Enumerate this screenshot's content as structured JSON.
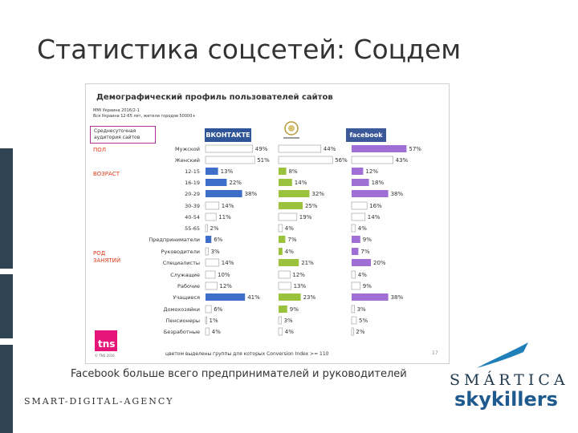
{
  "slide": {
    "title": "Статистика соцсетей: Соцдем",
    "caption": "Facebook больше всего предпринимателей и руководителей",
    "agency": "SMART-DIGITAL-AGENCY",
    "logo_top": "SMÁRTICA",
    "logo_bottom": "skykillers",
    "sidebar_color": "#2e4453"
  },
  "chart": {
    "heading": "Демографический профиль пользователей сайтов",
    "meta_line1": "MMI Украина 2016/2-1",
    "meta_line2": "Вся Украина 12-65 лет, жители городов 50000+",
    "audience_label": "Среднесуточная аудитория сайтов",
    "groups": [
      "ПОЛ",
      "ВОЗРАСТ",
      "РОД ЗАНЯТИЙ"
    ],
    "brands": [
      {
        "name": "ВКОНТАКТЕ",
        "color": "#3d6ec8"
      },
      {
        "name": "",
        "color": "#9ac23c"
      },
      {
        "name": "facebook",
        "color": "#9f6fd6"
      }
    ],
    "footnote": "цветом выделены группы для которых Conversion Index >= 110",
    "page_number": "17",
    "tns": "tns",
    "tns_sub": "© TNS 2016"
  },
  "chart_data": {
    "type": "bar",
    "categories": [
      "Мужской",
      "Женский",
      "12-15",
      "16-19",
      "20-29",
      "30-39",
      "40-54",
      "55-65",
      "Предприниматели",
      "Руководители",
      "Специалисты",
      "Служащие",
      "Рабочие",
      "Учащиеся",
      "Домохозяйки",
      "Пенсионеры",
      "Безработные"
    ],
    "series": [
      {
        "name": "ВКОНТАКТЕ",
        "values": [
          49,
          51,
          13,
          22,
          38,
          14,
          11,
          2,
          6,
          3,
          14,
          10,
          12,
          41,
          6,
          1,
          4
        ],
        "highlight": [
          false,
          false,
          true,
          true,
          true,
          false,
          false,
          false,
          true,
          false,
          false,
          false,
          false,
          true,
          false,
          false,
          false
        ]
      },
      {
        "name": "",
        "values": [
          44,
          56,
          8,
          14,
          32,
          25,
          19,
          4,
          7,
          4,
          21,
          12,
          13,
          23,
          9,
          3,
          4
        ],
        "highlight": [
          false,
          false,
          true,
          true,
          true,
          true,
          false,
          false,
          true,
          true,
          true,
          false,
          false,
          true,
          true,
          false,
          false
        ]
      },
      {
        "name": "facebook",
        "values": [
          57,
          43,
          12,
          18,
          38,
          16,
          14,
          4,
          9,
          7,
          20,
          4,
          9,
          38,
          3,
          5,
          2
        ],
        "highlight": [
          true,
          false,
          true,
          true,
          true,
          false,
          false,
          false,
          true,
          true,
          true,
          false,
          false,
          true,
          false,
          false,
          false
        ]
      }
    ]
  }
}
